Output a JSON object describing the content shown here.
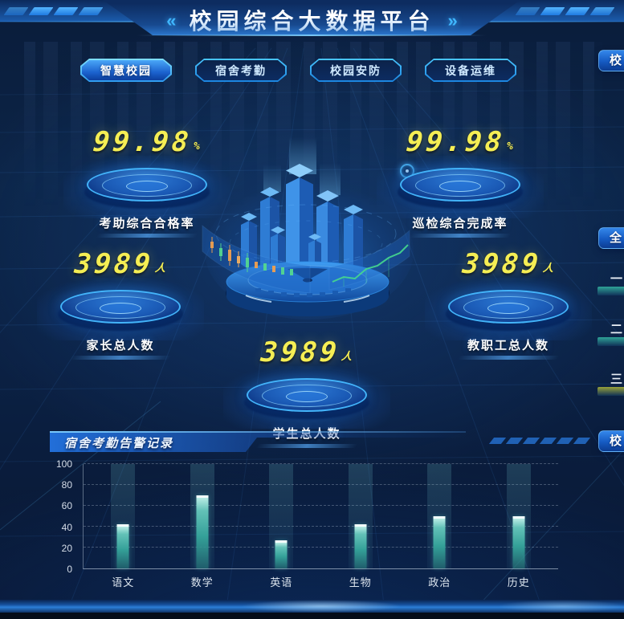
{
  "header": {
    "title": "校园综合大数据平台",
    "left_arrow": "«",
    "right_arrow": "»"
  },
  "tabs": [
    {
      "label": "智慧校园",
      "active": true
    },
    {
      "label": "宿舍考勤",
      "active": false
    },
    {
      "label": "校园安防",
      "active": false
    },
    {
      "label": "设备运维",
      "active": false
    }
  ],
  "stats": [
    {
      "value": "99.98",
      "unit": "%",
      "label": "考助综合合格率"
    },
    {
      "value": "99.98",
      "unit": "%",
      "label": "巡检综合完成率"
    },
    {
      "value": "3989",
      "unit": "人",
      "label": "家长总人数"
    },
    {
      "value": "3989",
      "unit": "人",
      "label": "教职工总人数"
    },
    {
      "value": "3989",
      "unit": "人",
      "label": "学生总人数"
    }
  ],
  "bottom_panel": {
    "title": "宿舍考勤告警记录"
  },
  "chart_data": {
    "type": "bar",
    "title": "宿舍考勤告警记录",
    "categories": [
      "语文",
      "数学",
      "英语",
      "生物",
      "政治",
      "历史"
    ],
    "values": [
      42,
      70,
      27,
      42,
      50,
      50
    ],
    "xlabel": "",
    "ylabel": "",
    "ylim": [
      0,
      100
    ],
    "yticks": [
      0,
      20,
      40,
      60,
      80,
      100
    ],
    "grid": "dashed-horizontal",
    "legend_position": "none",
    "bar_color": "#49b8ab",
    "band_color": "rgba(120,210,215,0.14)"
  },
  "right_edge": {
    "top_tab_label": "校",
    "middle_tab_label": "全",
    "bottom_tab_label": "校",
    "ranks": [
      {
        "num": "一",
        "bar_color": "#2fa397"
      },
      {
        "num": "二",
        "bar_color": "#2fa397"
      },
      {
        "num": "三",
        "bar_color": "#98a23a"
      }
    ]
  },
  "colors": {
    "accent_cyan": "#35c3ff",
    "number_yellow": "#f5ee54",
    "bar_teal": "#49b8ab",
    "background_navy": "#0a1c3a",
    "tab_active_blue": "#1c63cf"
  }
}
